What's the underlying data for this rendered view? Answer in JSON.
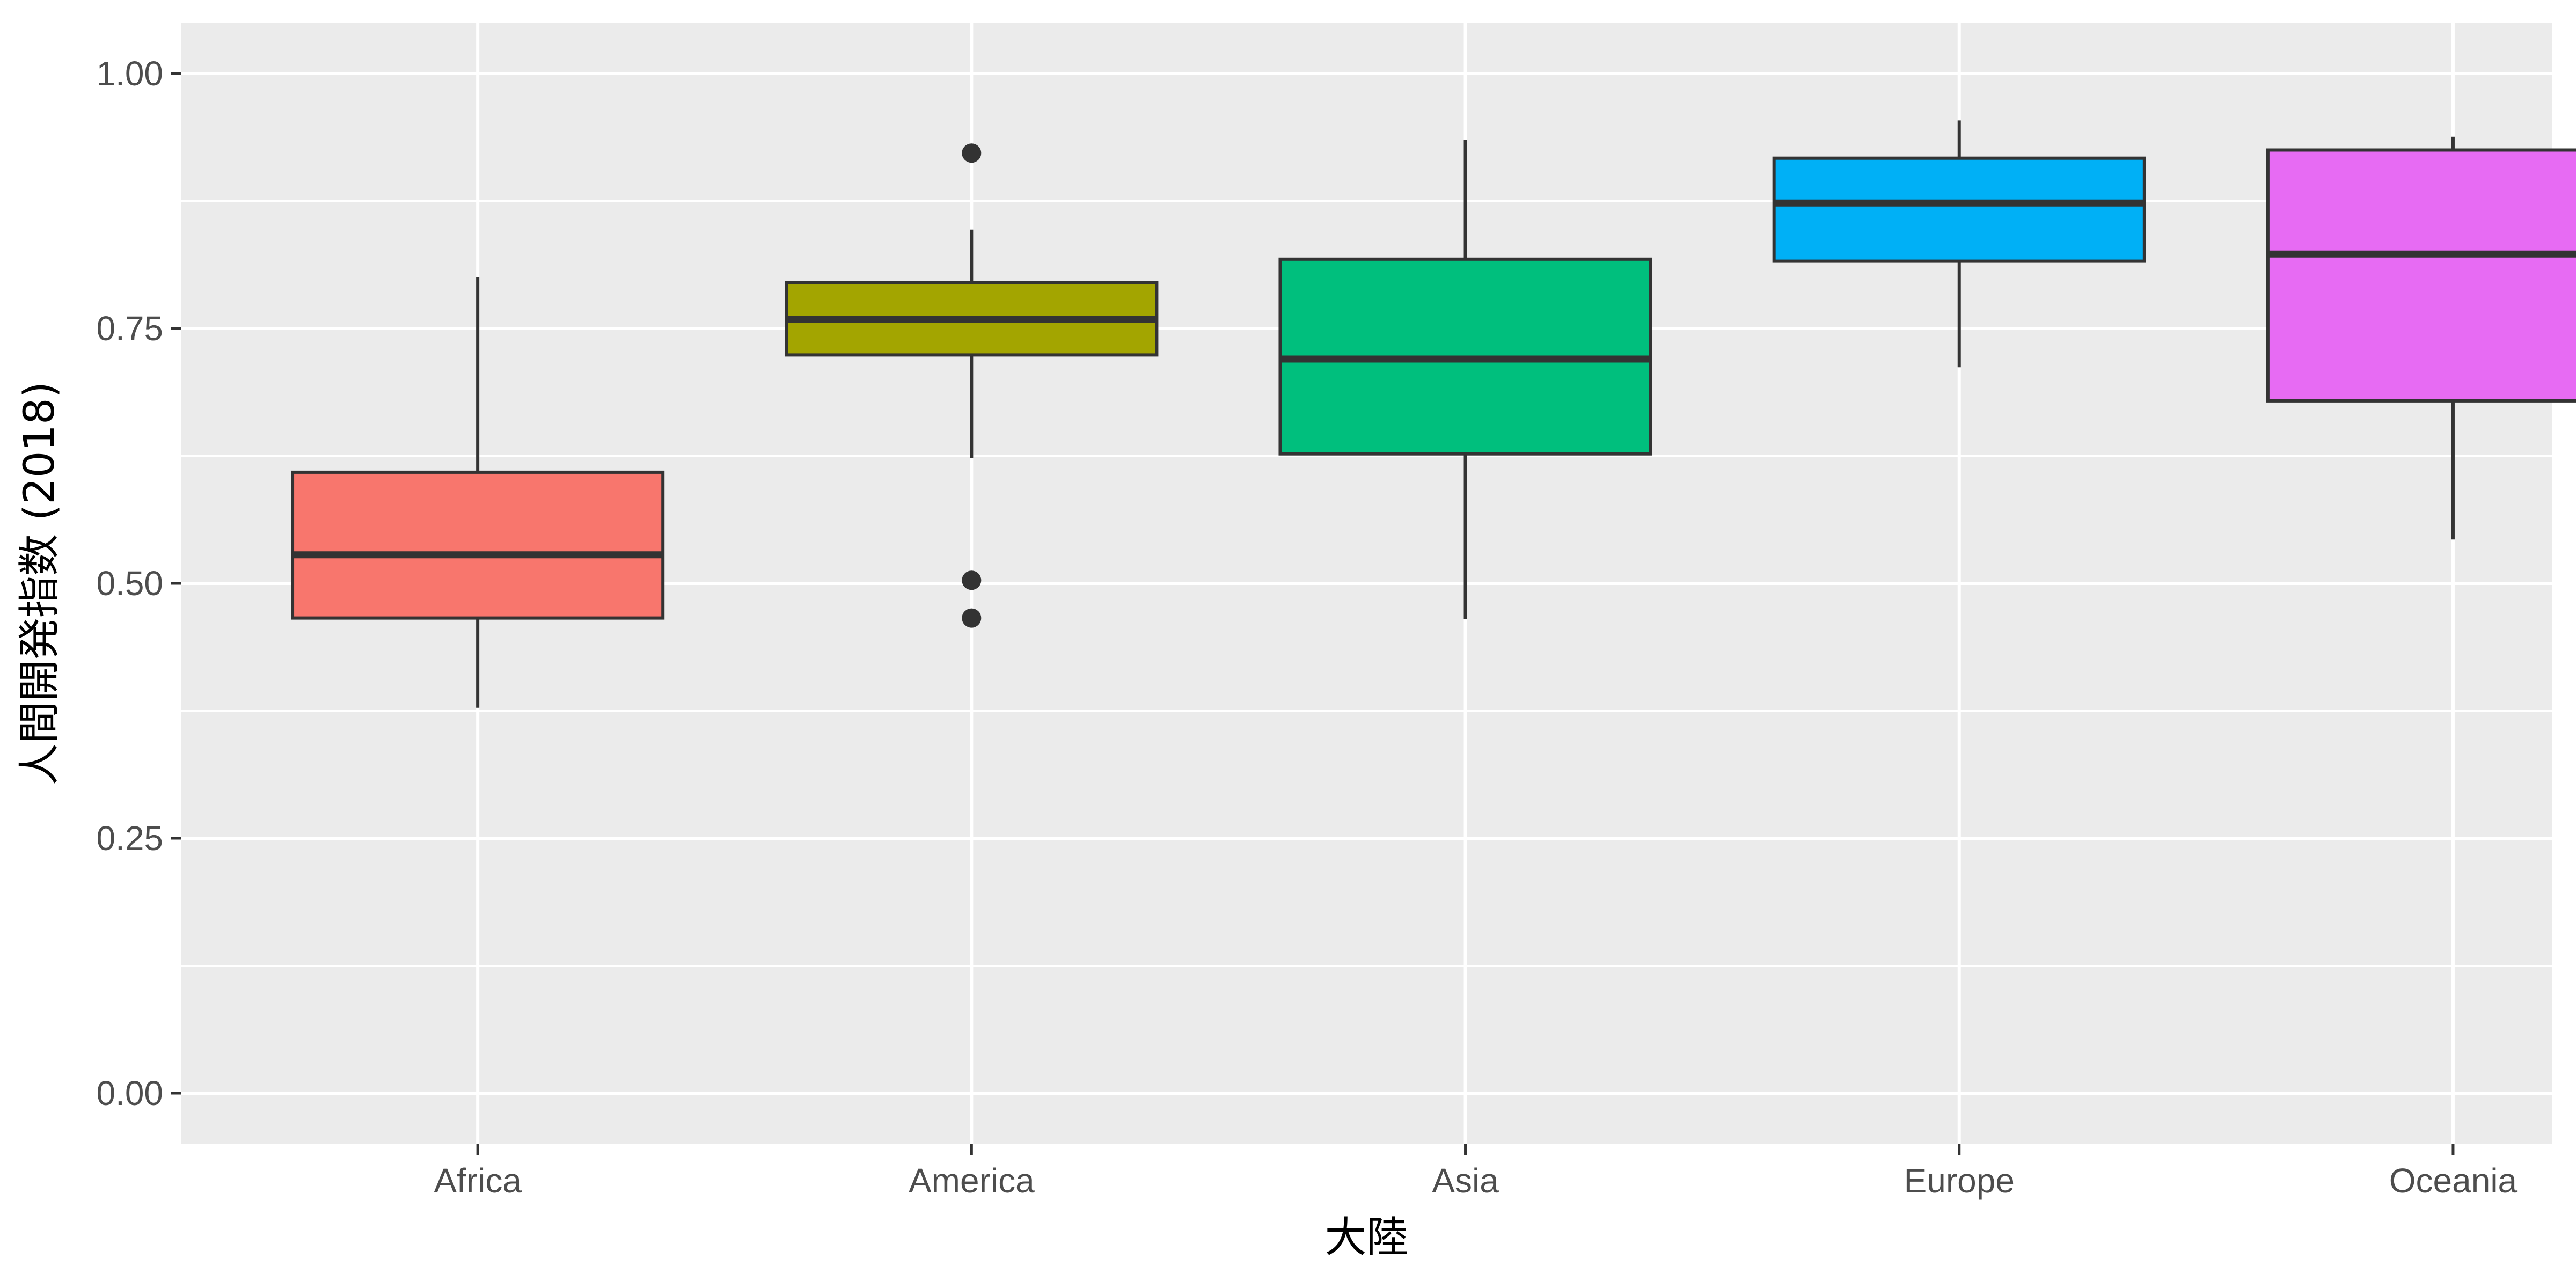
{
  "chart_data": {
    "type": "box",
    "title": "",
    "xlabel": "大陸",
    "ylabel": "人間開発指数 (2018)",
    "ylim": [
      -0.05,
      1.05
    ],
    "yticks": [
      {
        "value": 0.0,
        "label": "0.00"
      },
      {
        "value": 0.25,
        "label": "0.25"
      },
      {
        "value": 0.5,
        "label": "0.50"
      },
      {
        "value": 0.75,
        "label": "0.75"
      },
      {
        "value": 1.0,
        "label": "1.00"
      }
    ],
    "grid": true,
    "legend": "none",
    "categories": [
      "Africa",
      "America",
      "Asia",
      "Europe",
      "Oceania"
    ],
    "boxes": [
      {
        "category": "Africa",
        "whisker_low": 0.378,
        "q1": 0.466,
        "median": 0.528,
        "q3": 0.609,
        "whisker_high": 0.8,
        "outliers": [],
        "color": "#F8766D"
      },
      {
        "category": "America",
        "whisker_low": 0.623,
        "q1": 0.724,
        "median": 0.759,
        "q3": 0.795,
        "whisker_high": 0.847,
        "outliers": [
          0.922,
          0.503,
          0.466
        ],
        "color": "#A3A500"
      },
      {
        "category": "Asia",
        "whisker_low": 0.465,
        "q1": 0.627,
        "median": 0.72,
        "q3": 0.818,
        "whisker_high": 0.935,
        "outliers": [],
        "color": "#00BF7D"
      },
      {
        "category": "Europe",
        "whisker_low": 0.712,
        "q1": 0.816,
        "median": 0.873,
        "q3": 0.917,
        "whisker_high": 0.954,
        "outliers": [],
        "color": "#00B0F6"
      },
      {
        "category": "Oceania",
        "whisker_low": 0.543,
        "q1": 0.679,
        "median": 0.823,
        "q3": 0.925,
        "whisker_high": 0.938,
        "outliers": [],
        "color": "#E76BF3"
      }
    ]
  }
}
